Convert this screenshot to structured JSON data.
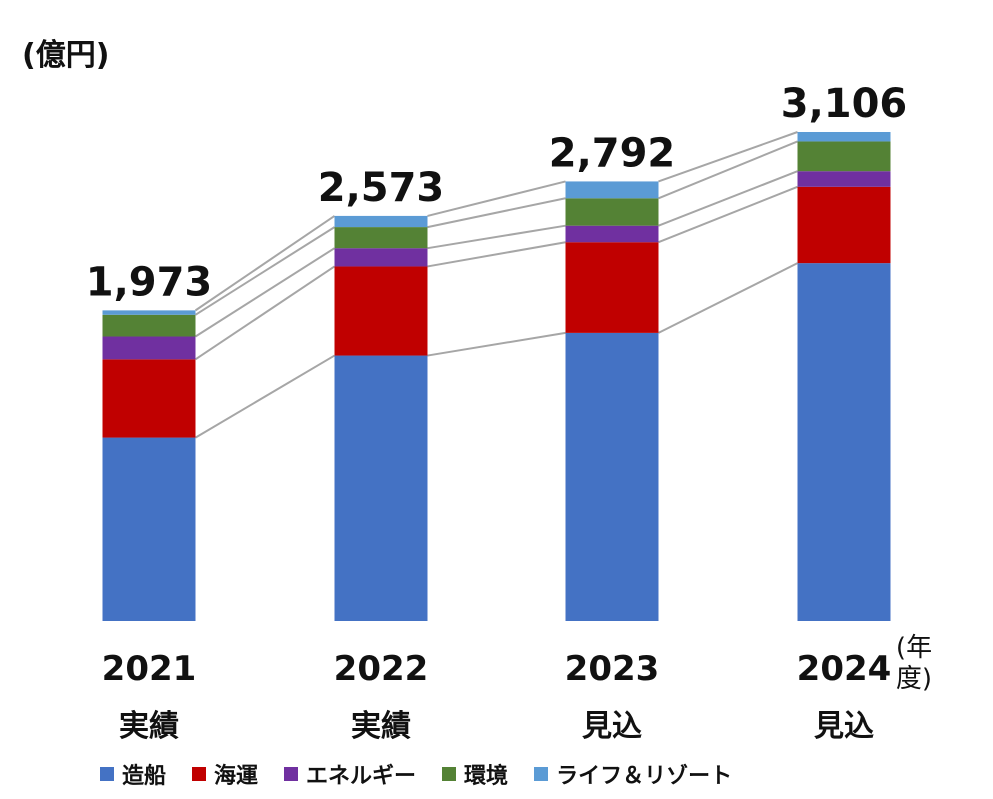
{
  "unit_label": "(億円)",
  "year_unit_label": "(年度)",
  "chart_data": {
    "type": "bar",
    "stacked": true,
    "categories": [
      "2021",
      "2022",
      "2023",
      "2024"
    ],
    "category_sublabels": [
      "実績",
      "実績",
      "見込",
      "見込"
    ],
    "totals": [
      "1,973",
      "2,573",
      "2,792",
      "3,106"
    ],
    "total_values": [
      1973,
      2573,
      2792,
      3106
    ],
    "ylim": [
      0,
      3106
    ],
    "grid": false,
    "legend_position": "bottom",
    "series": [
      {
        "name": "造船",
        "color": "#4472C4",
        "values": [
          1165,
          1686,
          1830,
          2273
        ]
      },
      {
        "name": "海運",
        "color": "#C00000",
        "values": [
          497,
          566,
          576,
          485
        ]
      },
      {
        "name": "エネルギー",
        "color": "#7030A0",
        "values": [
          145,
          116,
          105,
          99
        ]
      },
      {
        "name": "環境",
        "color": "#548235",
        "values": [
          138,
          134,
          174,
          189
        ]
      },
      {
        "name": "ライフ＆リゾート",
        "color": "#5B9BD5",
        "values": [
          28,
          71,
          107,
          60
        ]
      }
    ]
  }
}
